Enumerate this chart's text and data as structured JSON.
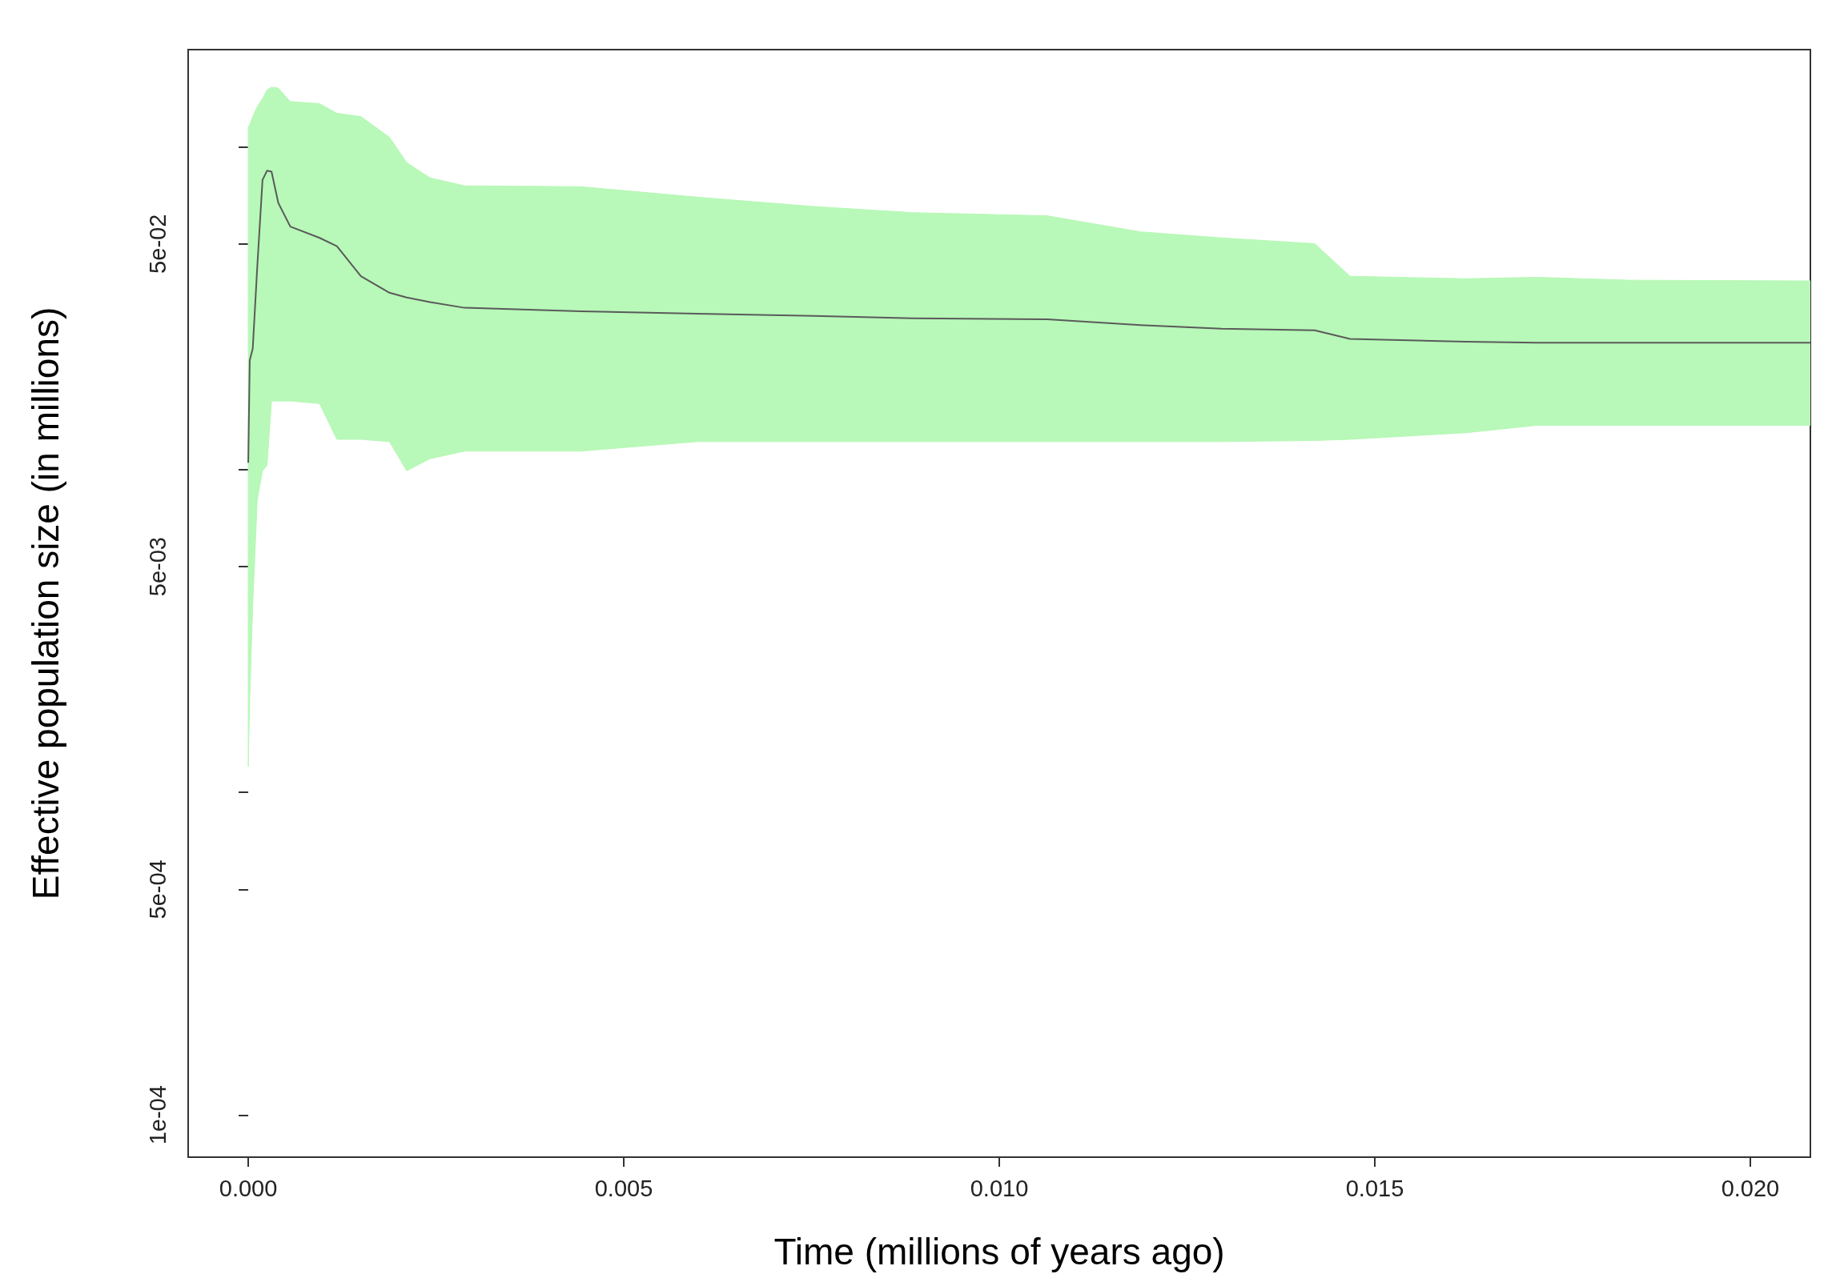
{
  "chart_data": {
    "type": "line",
    "xlabel": "Time (millions of years ago)",
    "ylabel": "Effective population size (in millions)",
    "log": "y",
    "grid": false,
    "marker": "none",
    "xlim": [
      -0.0008,
      0.0208
    ],
    "ylim": [
      7.4e-05,
      0.2
    ],
    "xticks": [
      {
        "value": 0,
        "label": "0.000"
      },
      {
        "value": 0.005,
        "label": "0.005"
      },
      {
        "value": 0.01,
        "label": "0.010"
      },
      {
        "value": 0.015,
        "label": "0.015"
      },
      {
        "value": 0.02,
        "label": "0.020"
      }
    ],
    "yticks": [
      {
        "value": 0.0001,
        "label": "1e-04"
      },
      {
        "value": 0.0005,
        "label": "5e-04"
      },
      {
        "value": 0.001,
        "label": null
      },
      {
        "value": 0.005,
        "label": "5e-03"
      },
      {
        "value": 0.01,
        "label": null
      },
      {
        "value": 0.05,
        "label": "5e-02"
      },
      {
        "value": 0.1,
        "label": null
      }
    ],
    "x": [
      0,
      2e-05,
      6e-05,
      0.00012,
      0.00019,
      0.00025,
      0.00031,
      0.0004,
      0.00056,
      0.00095,
      0.00118,
      0.0015,
      0.00188,
      0.00211,
      0.00242,
      0.00288,
      0.00443,
      0.00598,
      0.00753,
      0.00885,
      0.01064,
      0.01188,
      0.01296,
      0.0142,
      0.01467,
      0.01622,
      0.01715,
      0.01839,
      0.0208
    ],
    "series": [
      {
        "color": "#5a5a5a",
        "values": [
          0.0105,
          0.0218,
          0.0237,
          0.0424,
          0.0789,
          0.0843,
          0.0837,
          0.067,
          0.0566,
          0.0522,
          0.0492,
          0.0397,
          0.0353,
          0.0341,
          0.033,
          0.0317,
          0.0309,
          0.0304,
          0.0299,
          0.0294,
          0.0292,
          0.028,
          0.0273,
          0.027,
          0.0254,
          0.0249,
          0.0247,
          0.0247,
          0.0247
        ],
        "upper": [
          0.115,
          0.117,
          0.124,
          0.133,
          0.141,
          0.15,
          0.153,
          0.152,
          0.138,
          0.136,
          0.127,
          0.124,
          0.107,
          0.0893,
          0.0801,
          0.0757,
          0.0752,
          0.0698,
          0.0653,
          0.0625,
          0.0611,
          0.0545,
          0.0522,
          0.0501,
          0.0397,
          0.039,
          0.0394,
          0.0386,
          0.0384
        ],
        "lower": [
          0.0012,
          0.00197,
          0.00382,
          0.00805,
          0.00991,
          0.0103,
          0.0163,
          0.0163,
          0.0163,
          0.016,
          0.0124,
          0.0124,
          0.0122,
          0.00991,
          0.0108,
          0.0114,
          0.0114,
          0.0122,
          0.0122,
          0.0122,
          0.0122,
          0.0122,
          0.0122,
          0.0123,
          0.0124,
          0.013,
          0.0137,
          0.0137,
          0.0137
        ]
      }
    ]
  }
}
